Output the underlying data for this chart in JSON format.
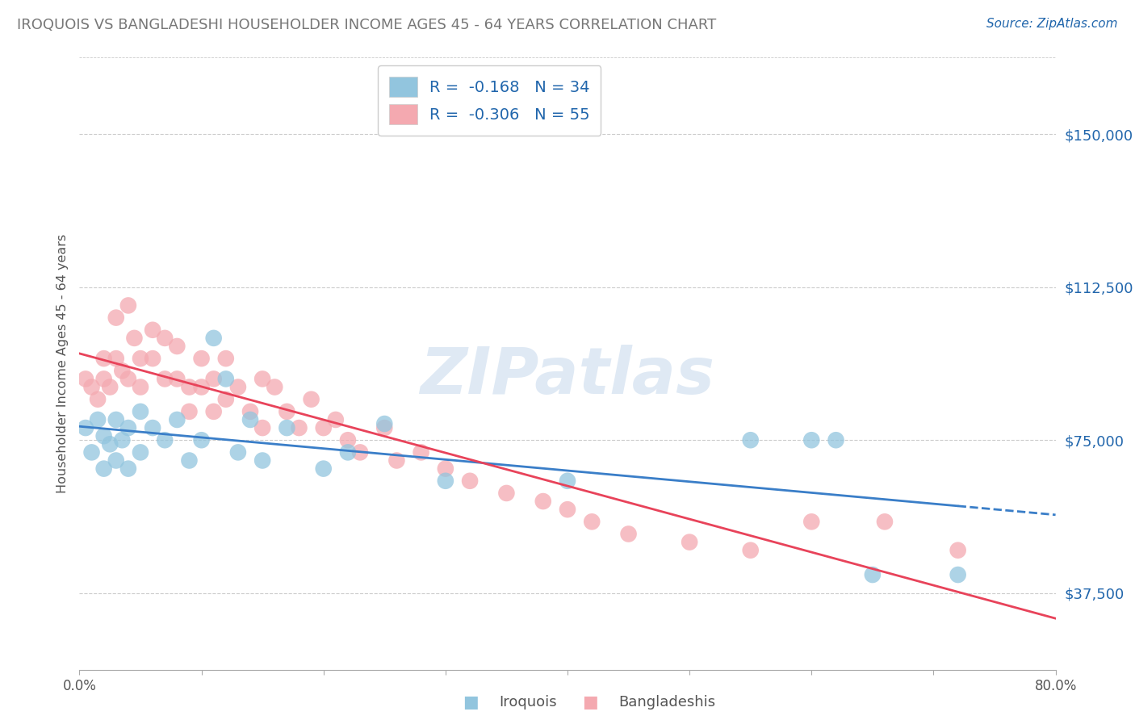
{
  "title": "IROQUOIS VS BANGLADESHI HOUSEHOLDER INCOME AGES 45 - 64 YEARS CORRELATION CHART",
  "source": "Source: ZipAtlas.com",
  "ylabel": "Householder Income Ages 45 - 64 years",
  "watermark": "ZIPatlas",
  "xlim": [
    0.0,
    0.8
  ],
  "ylim": [
    18750,
    168750
  ],
  "yticks": [
    37500,
    75000,
    112500,
    150000
  ],
  "ytick_labels": [
    "$37,500",
    "$75,000",
    "$112,500",
    "$150,000"
  ],
  "xtick_labels": [
    "0.0%",
    "",
    "",
    "",
    "",
    "",
    "",
    "",
    "80.0%"
  ],
  "xticks": [
    0.0,
    0.1,
    0.2,
    0.3,
    0.4,
    0.5,
    0.6,
    0.7,
    0.8
  ],
  "iroquois_label": "Iroquois",
  "bangladeshi_label": "Bangladeshis",
  "iroquois_R": -0.168,
  "iroquois_N": 34,
  "bangladeshi_R": -0.306,
  "bangladeshi_N": 55,
  "iroquois_color": "#92c5de",
  "bangladeshi_color": "#f4a9b0",
  "iroquois_line_color": "#3a7ec8",
  "bangladeshi_line_color": "#e8435a",
  "legend_text_color": "#2166ac",
  "title_color": "#777777",
  "background_color": "#ffffff",
  "iroquois_x": [
    0.005,
    0.01,
    0.015,
    0.02,
    0.02,
    0.025,
    0.03,
    0.03,
    0.035,
    0.04,
    0.04,
    0.05,
    0.05,
    0.06,
    0.07,
    0.08,
    0.09,
    0.1,
    0.11,
    0.12,
    0.13,
    0.14,
    0.15,
    0.17,
    0.2,
    0.22,
    0.25,
    0.3,
    0.4,
    0.55,
    0.6,
    0.62,
    0.65,
    0.72
  ],
  "iroquois_y": [
    78000,
    72000,
    80000,
    68000,
    76000,
    74000,
    80000,
    70000,
    75000,
    78000,
    68000,
    82000,
    72000,
    78000,
    75000,
    80000,
    70000,
    75000,
    100000,
    90000,
    72000,
    80000,
    70000,
    78000,
    68000,
    72000,
    79000,
    65000,
    65000,
    75000,
    75000,
    75000,
    42000,
    42000
  ],
  "bangladeshi_x": [
    0.005,
    0.01,
    0.015,
    0.02,
    0.02,
    0.025,
    0.03,
    0.03,
    0.035,
    0.04,
    0.04,
    0.045,
    0.05,
    0.05,
    0.06,
    0.06,
    0.07,
    0.07,
    0.08,
    0.08,
    0.09,
    0.09,
    0.1,
    0.1,
    0.11,
    0.11,
    0.12,
    0.12,
    0.13,
    0.14,
    0.15,
    0.15,
    0.16,
    0.17,
    0.18,
    0.19,
    0.2,
    0.21,
    0.22,
    0.23,
    0.25,
    0.26,
    0.28,
    0.3,
    0.32,
    0.35,
    0.38,
    0.4,
    0.42,
    0.45,
    0.5,
    0.55,
    0.6,
    0.66,
    0.72
  ],
  "bangladeshi_y": [
    90000,
    88000,
    85000,
    95000,
    90000,
    88000,
    105000,
    95000,
    92000,
    108000,
    90000,
    100000,
    95000,
    88000,
    102000,
    95000,
    100000,
    90000,
    98000,
    90000,
    88000,
    82000,
    95000,
    88000,
    90000,
    82000,
    95000,
    85000,
    88000,
    82000,
    90000,
    78000,
    88000,
    82000,
    78000,
    85000,
    78000,
    80000,
    75000,
    72000,
    78000,
    70000,
    72000,
    68000,
    65000,
    62000,
    60000,
    58000,
    55000,
    52000,
    50000,
    48000,
    55000,
    55000,
    48000
  ]
}
